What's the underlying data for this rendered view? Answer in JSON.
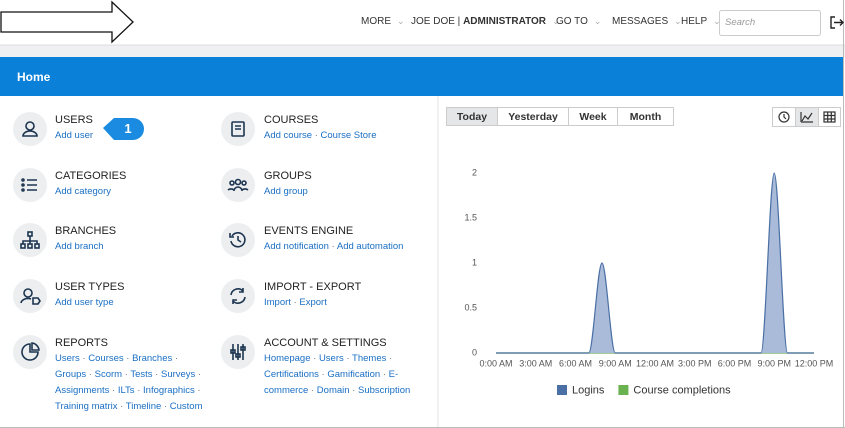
{
  "nav": {
    "more": "MORE",
    "user": "JOE DOE",
    "role": "ADMINISTRATOR",
    "goto": "GO TO",
    "messages": "MESSAGES",
    "help": "HELP",
    "search_placeholder": "Search"
  },
  "page_title": "Home",
  "badge": "1",
  "columns": [
    [
      {
        "title": "USERS",
        "links": [
          "Add user"
        ]
      },
      {
        "title": "CATEGORIES",
        "links": [
          "Add category"
        ]
      },
      {
        "title": "BRANCHES",
        "links": [
          "Add branch"
        ]
      },
      {
        "title": "USER TYPES",
        "links": [
          "Add user type"
        ]
      },
      {
        "title": "REPORTS",
        "links": [
          "Users",
          "Courses",
          "Branches",
          "Groups",
          "Scorm",
          "Tests",
          "Surveys",
          "Assignments",
          "ILTs",
          "Infographics",
          "Training matrix",
          "Timeline",
          "Custom"
        ]
      }
    ],
    [
      {
        "title": "COURSES",
        "links": [
          "Add course",
          "Course Store"
        ]
      },
      {
        "title": "GROUPS",
        "links": [
          "Add group"
        ]
      },
      {
        "title": "EVENTS ENGINE",
        "links": [
          "Add notification",
          "Add automation"
        ]
      },
      {
        "title": "IMPORT - EXPORT",
        "links": [
          "Import",
          "Export"
        ]
      },
      {
        "title": "ACCOUNT & SETTINGS",
        "links": [
          "Homepage",
          "Users",
          "Themes",
          "Certifications",
          "Gamification",
          "E-commerce",
          "Domain",
          "Subscription"
        ]
      }
    ]
  ],
  "tabs": [
    "Today",
    "Yesterday",
    "Week",
    "Month"
  ],
  "chart_data": {
    "type": "area",
    "x": [
      0,
      1,
      2,
      3,
      4,
      5,
      6,
      7,
      8,
      9,
      10,
      11,
      12,
      13,
      14,
      15,
      16,
      17,
      18,
      19,
      20,
      21,
      22,
      23,
      24
    ],
    "series": [
      {
        "name": "Logins",
        "color": "#4a6fa5",
        "fill": "#a9bbd8",
        "values": [
          0,
          0,
          0,
          0,
          0,
          0,
          0,
          0,
          1,
          0,
          0,
          0,
          0,
          0,
          0,
          0,
          0,
          0,
          0,
          0,
          0,
          2,
          0,
          0,
          0
        ]
      },
      {
        "name": "Course completions",
        "color": "#6ab24f",
        "values": [
          0,
          0,
          0,
          0,
          0,
          0,
          0,
          0,
          0,
          0,
          0,
          0,
          0,
          0,
          0,
          0,
          0,
          0,
          0,
          0,
          0,
          0,
          0,
          0,
          0
        ]
      }
    ],
    "xlim": [
      0,
      24
    ],
    "xticks": [
      {
        "value": 0,
        "label": "0:00 AM"
      },
      {
        "value": 3,
        "label": "3:00 AM"
      },
      {
        "value": 6,
        "label": "6:00 AM"
      },
      {
        "value": 9,
        "label": "9:00 AM"
      },
      {
        "value": 12,
        "label": "12:00 AM"
      },
      {
        "value": 15,
        "label": "3:00 PM"
      },
      {
        "value": 18,
        "label": "6:00 PM"
      },
      {
        "value": 21,
        "label": "9:00 PM"
      },
      {
        "value": 24,
        "label": "12:00 PM"
      }
    ],
    "ylim": [
      0,
      2
    ],
    "yticks": [
      0,
      0.5,
      1,
      1.5,
      2
    ],
    "grid": false,
    "legend": "bottom"
  }
}
